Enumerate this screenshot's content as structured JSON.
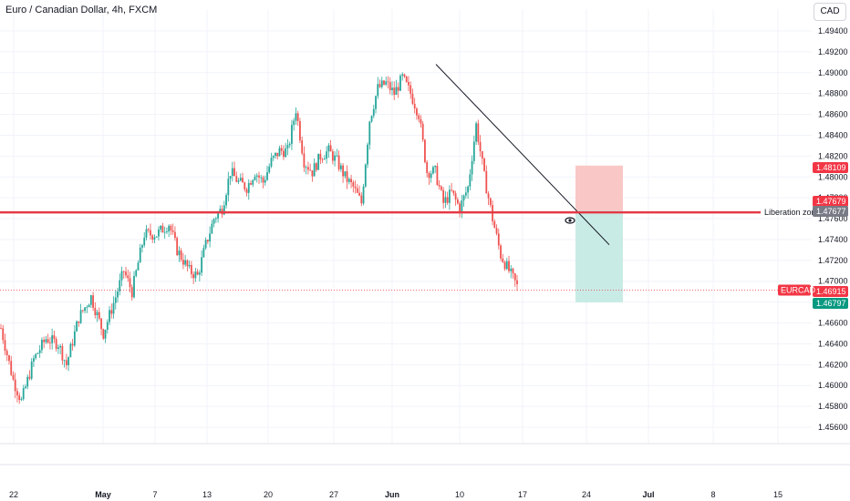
{
  "header": {
    "title": "Euro / Canadian Dollar, 4h, FXCM",
    "currency": "CAD"
  },
  "colors": {
    "up": "#26a69a",
    "down": "#ef5350",
    "grid": "#f0f3fa",
    "zone_line": "#e53945",
    "stop_box": "#f9c8c6",
    "target_box": "#c9ebe6",
    "trendline": "#131722"
  },
  "annotations": {
    "zone_label": "Liberation zone",
    "symbol_tag": "EURCAD",
    "eye_icon": "eye-icon"
  },
  "chart_data": {
    "type": "candlestick",
    "title": "Euro / Canadian Dollar, 4h, FXCM",
    "ylim": [
      1.4545,
      1.4955
    ],
    "y_ticks": [
      "1.49400",
      "1.49200",
      "1.49000",
      "1.48800",
      "1.48600",
      "1.48400",
      "1.48200",
      "1.48000",
      "1.47800",
      "1.47600",
      "1.47400",
      "1.47200",
      "1.47000",
      "1.46800",
      "1.46600",
      "1.46400",
      "1.46200",
      "1.46000",
      "1.45800",
      "1.45600"
    ],
    "x_ticks": [
      {
        "label": "22",
        "bold": false
      },
      {
        "label": "May",
        "bold": true
      },
      {
        "label": "7",
        "bold": false
      },
      {
        "label": "13",
        "bold": false
      },
      {
        "label": "20",
        "bold": false
      },
      {
        "label": "27",
        "bold": false
      },
      {
        "label": "Jun",
        "bold": true
      },
      {
        "label": "10",
        "bold": false
      },
      {
        "label": "17",
        "bold": false
      },
      {
        "label": "24",
        "bold": false
      },
      {
        "label": "Jul",
        "bold": true
      },
      {
        "label": "8",
        "bold": false
      },
      {
        "label": "15",
        "bold": false
      }
    ],
    "price_tags": [
      {
        "value": "1.48109",
        "color": "#f23645"
      },
      {
        "value": "1.47679",
        "color": "#f23645"
      },
      {
        "value": "1.47677",
        "color": "#787b86"
      },
      {
        "value": "1.46915",
        "color": "#f23645"
      },
      {
        "value": "1.46797",
        "color": "#089981"
      }
    ],
    "liquidity_zone_level": 1.4766,
    "current_price": 1.46915,
    "trendline": {
      "start": 1.4908,
      "end": 1.4735
    },
    "position": {
      "stop": 1.48109,
      "entry": 1.47677,
      "target": 1.46797
    },
    "anchors": [
      [
        0,
        1.4655
      ],
      [
        6,
        1.4605
      ],
      [
        10,
        1.4585
      ],
      [
        16,
        1.4625
      ],
      [
        22,
        1.4645
      ],
      [
        28,
        1.464
      ],
      [
        32,
        1.462
      ],
      [
        38,
        1.4665
      ],
      [
        44,
        1.4685
      ],
      [
        50,
        1.465
      ],
      [
        56,
        1.4685
      ],
      [
        60,
        1.471
      ],
      [
        64,
        1.469
      ],
      [
        70,
        1.4745
      ],
      [
        76,
        1.4745
      ],
      [
        82,
        1.4755
      ],
      [
        86,
        1.473
      ],
      [
        92,
        1.471
      ],
      [
        96,
        1.4705
      ],
      [
        100,
        1.4735
      ],
      [
        104,
        1.476
      ],
      [
        108,
        1.477
      ],
      [
        112,
        1.4805
      ],
      [
        116,
        1.4795
      ],
      [
        120,
        1.479
      ],
      [
        124,
        1.4805
      ],
      [
        128,
        1.4795
      ],
      [
        132,
        1.4815
      ],
      [
        136,
        1.4825
      ],
      [
        140,
        1.4825
      ],
      [
        144,
        1.4865
      ],
      [
        148,
        1.4815
      ],
      [
        152,
        1.4805
      ],
      [
        156,
        1.482
      ],
      [
        160,
        1.4825
      ],
      [
        164,
        1.4815
      ],
      [
        168,
        1.48
      ],
      [
        172,
        1.479
      ],
      [
        176,
        1.4775
      ],
      [
        180,
        1.4855
      ],
      [
        184,
        1.4885
      ],
      [
        188,
        1.489
      ],
      [
        192,
        1.488
      ],
      [
        196,
        1.4895
      ],
      [
        200,
        1.488
      ],
      [
        204,
        1.486
      ],
      [
        208,
        1.4805
      ],
      [
        212,
        1.4805
      ],
      [
        216,
        1.4775
      ],
      [
        220,
        1.4785
      ],
      [
        224,
        1.477
      ],
      [
        228,
        1.479
      ],
      [
        232,
        1.485
      ],
      [
        236,
        1.48
      ],
      [
        240,
        1.476
      ],
      [
        244,
        1.4725
      ],
      [
        248,
        1.471
      ],
      [
        252,
        1.4695
      ]
    ]
  }
}
